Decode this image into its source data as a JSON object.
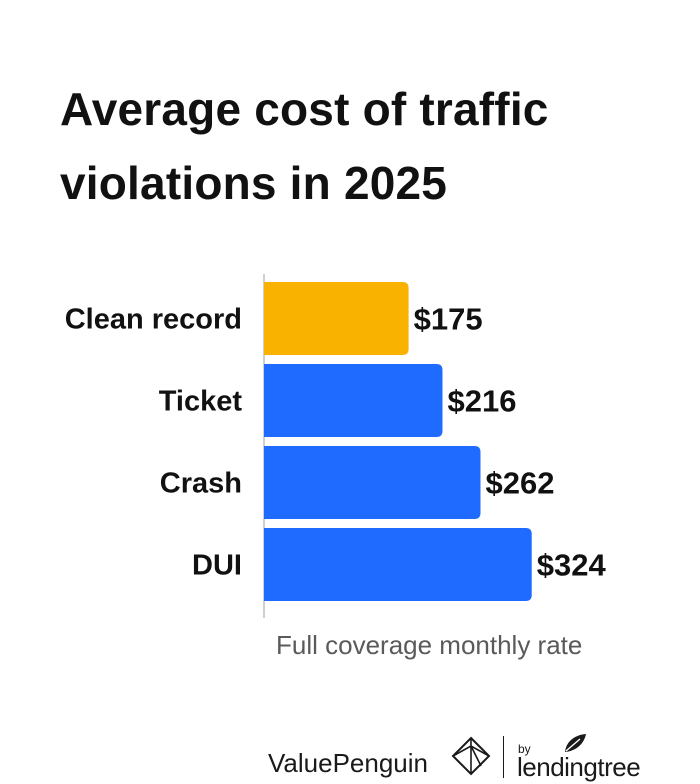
{
  "chart_data": {
    "type": "bar",
    "orientation": "horizontal",
    "title_lines": [
      "Average cost of traffic",
      "violations in 2025"
    ],
    "categories": [
      "Clean record",
      "Ticket",
      "Crash",
      "DUI"
    ],
    "values": [
      175,
      216,
      262,
      324
    ],
    "value_labels": [
      "$175",
      "$216",
      "$262",
      "$324"
    ],
    "xlabel": "Full coverage monthly rate",
    "xlim": [
      0,
      350
    ],
    "grid": false,
    "legend": "none",
    "colors": [
      "#F9B200",
      "#1F6BFF",
      "#1F6BFF",
      "#1F6BFF"
    ]
  },
  "footer": {
    "brand": "ValuePenguin",
    "by": "by",
    "partner": "lendingtree",
    "icons": [
      "valuepenguin-logo-icon",
      "lendingtree-leaf-icon"
    ]
  },
  "colors": {
    "highlight": "#F9B200",
    "bar": "#1F6BFF",
    "axis": "#cfcfcf",
    "text": "#111111",
    "muted": "#5a5a5a"
  }
}
